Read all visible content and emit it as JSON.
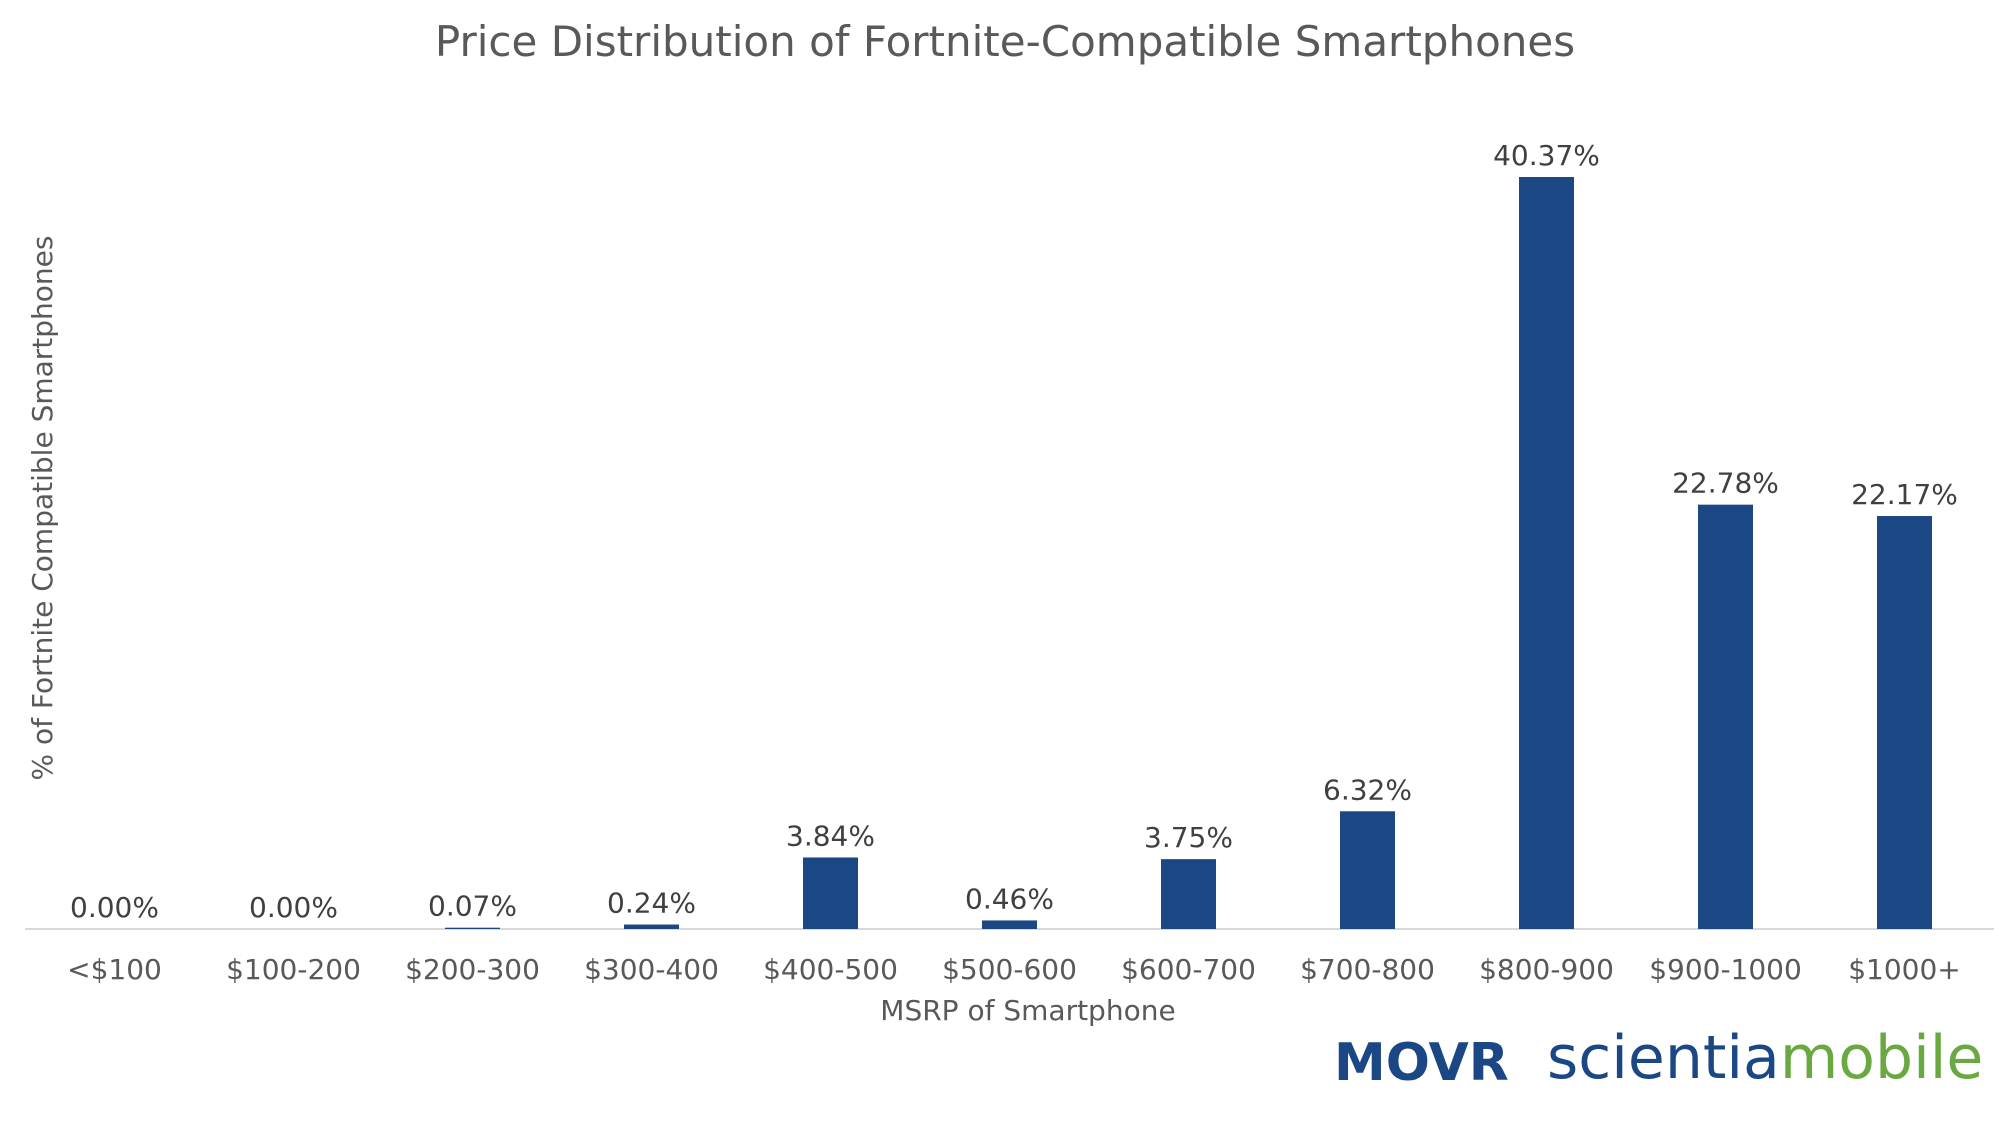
{
  "chart_data": {
    "type": "bar",
    "title": "Price Distribution of Fortnite-Compatible Smartphones",
    "xlabel": "MSRP of Smartphone",
    "ylabel": "% of Fortnite Compatible Smartphones",
    "categories": [
      "<$100",
      "$100-200",
      "$200-300",
      "$300-400",
      "$400-500",
      "$500-600",
      "$600-700",
      "$700-800",
      "$800-900",
      "$900-1000",
      "$1000+"
    ],
    "values": [
      0.0,
      0.0,
      0.07,
      0.24,
      3.84,
      0.46,
      3.75,
      6.32,
      40.37,
      22.78,
      22.17
    ],
    "data_labels": [
      "0.00%",
      "0.00%",
      "0.07%",
      "0.24%",
      "3.84%",
      "0.46%",
      "3.75%",
      "6.32%",
      "40.37%",
      "22.78%",
      "22.17%"
    ],
    "ylim": [
      0,
      45
    ],
    "grid": false,
    "legend": "none",
    "bar_color": "#1c4785",
    "axis_color": "#d9d9d9"
  },
  "logos": {
    "movr": {
      "text": "MOVR",
      "color": "#1c4785"
    },
    "scientia": {
      "text_part1": "scientia",
      "text_part2": "mobile",
      "color1": "#1c4785",
      "color2": "#6aa842"
    }
  }
}
